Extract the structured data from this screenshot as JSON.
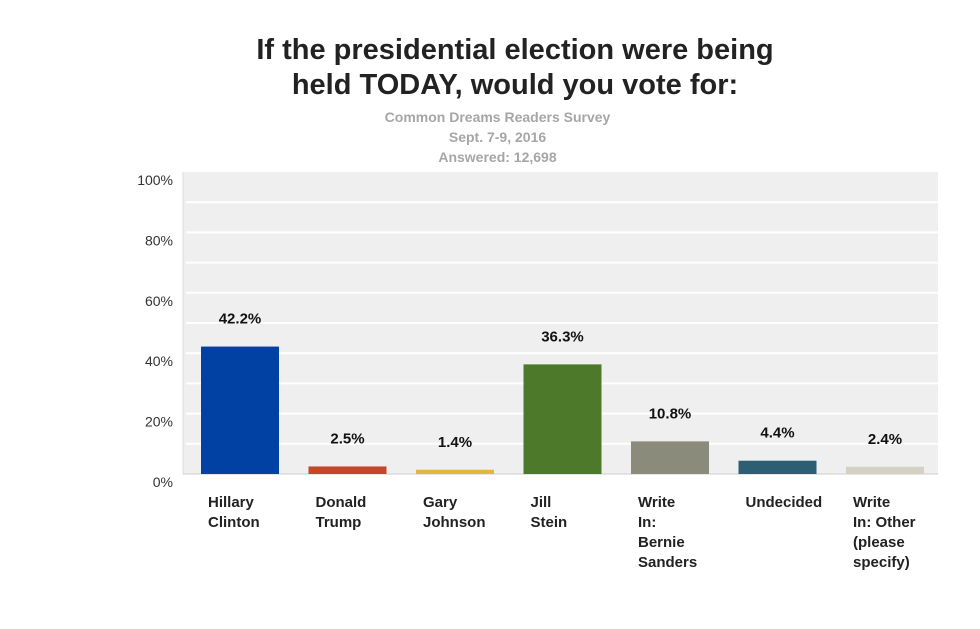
{
  "chart_data": {
    "type": "bar",
    "title": "If the presidential election were being held TODAY, would you vote for:",
    "title_lines": [
      "If the presidential election were being",
      "held TODAY, would you vote for:"
    ],
    "subtitle": [
      "Common Dreams Readers Survey",
      "Sept. 7-9, 2016",
      "Answered: 12,698"
    ],
    "xlabel": "",
    "ylabel": "",
    "ylim": [
      0,
      100
    ],
    "yticks": [
      0,
      20,
      40,
      60,
      80,
      100
    ],
    "ytick_labels": [
      "0%",
      "20%",
      "40%",
      "60%",
      "80%",
      "100%"
    ],
    "grid": true,
    "categories": [
      "Hillary\nClinton",
      "Donald\nTrump",
      "Gary\nJohnson",
      "Jill\nStein",
      "Write\nIn:\nBernie\nSanders",
      "Undecided",
      "Write\nIn: Other\n(please\nspecify)"
    ],
    "values": [
      42.2,
      2.5,
      1.4,
      36.3,
      10.8,
      4.4,
      2.4
    ],
    "data_labels": [
      "42.2%",
      "2.5%",
      "1.4%",
      "36.3%",
      "10.8%",
      "4.4%",
      "2.4%"
    ],
    "colors": [
      "#0041a3",
      "#c5472a",
      "#e8b33a",
      "#4d7a2a",
      "#8a8b7b",
      "#2c5f74",
      "#d3d0c4"
    ]
  }
}
